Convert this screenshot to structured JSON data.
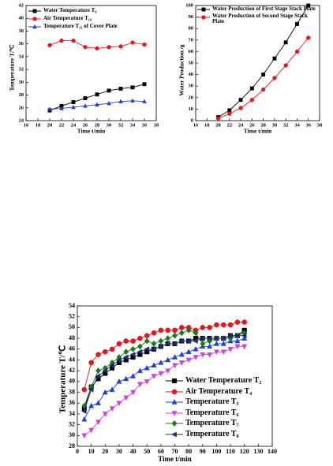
{
  "chart_data": [
    {
      "type": "line",
      "xlabel": "Time t/min",
      "ylabel": "Temperature T/℃",
      "xlim": [
        16,
        38
      ],
      "xticks": [
        16,
        18,
        20,
        22,
        24,
        26,
        28,
        30,
        32,
        34,
        36,
        38
      ],
      "ylim": [
        24,
        42
      ],
      "yticks": [
        24,
        26,
        28,
        30,
        32,
        34,
        36,
        38,
        40,
        42
      ],
      "legend": "upper left",
      "x": [
        20,
        22,
        24,
        26,
        28,
        30,
        32,
        34,
        36
      ],
      "series": [
        {
          "name": "Water Temperature T₀",
          "color": "#000000",
          "marker": "square",
          "values": [
            25.6,
            26.3,
            26.9,
            27.5,
            28.1,
            28.7,
            29.0,
            29.2,
            29.7
          ]
        },
        {
          "name": "Air Temperature T₁₀",
          "color": "#e8161b",
          "marker": "circle",
          "values": [
            35.8,
            36.5,
            36.5,
            35.5,
            35.3,
            35.5,
            35.6,
            36.2,
            35.9
          ]
        },
        {
          "name": "Temperature T₁₁ of Cover Plate",
          "color": "#1f3fd6",
          "marker": "triangle",
          "values": [
            25.8,
            25.9,
            26.1,
            26.3,
            26.5,
            26.7,
            27.0,
            27.1,
            27.0
          ]
        }
      ]
    },
    {
      "type": "line",
      "xlabel": "Time t/min",
      "ylabel": "Water Production /g",
      "xlim": [
        16,
        38
      ],
      "xticks": [
        16,
        18,
        20,
        22,
        24,
        26,
        28,
        30,
        32,
        34,
        36,
        38
      ],
      "ylim": [
        0,
        100
      ],
      "yticks": [
        0,
        10,
        20,
        30,
        40,
        50,
        60,
        70,
        80,
        90,
        100
      ],
      "legend": "upper left",
      "x": [
        20,
        22,
        24,
        26,
        28,
        30,
        32,
        34,
        36
      ],
      "series": [
        {
          "name": "Water Production of First Stage Stack Plate",
          "color": "#000000",
          "marker": "square",
          "values": [
            3,
            9,
            18,
            28,
            40,
            54,
            68,
            84,
            100
          ]
        },
        {
          "name": "Water Production of Second Stage Stack Plate",
          "color": "#e8161b",
          "marker": "circle",
          "values": [
            2,
            6,
            11,
            18,
            27,
            37,
            48,
            60,
            72
          ]
        }
      ]
    },
    {
      "type": "line",
      "xlabel": "Time t/min",
      "ylabel": "Temperature T/℃",
      "xlim": [
        0,
        140
      ],
      "xticks": [
        0,
        10,
        20,
        30,
        40,
        50,
        60,
        70,
        80,
        90,
        100,
        110,
        120,
        130,
        140
      ],
      "ylim": [
        28,
        54
      ],
      "yticks": [
        28,
        30,
        32,
        34,
        36,
        38,
        40,
        42,
        44,
        46,
        48,
        50,
        52,
        54
      ],
      "legend": "lower right",
      "x": [
        5,
        10,
        15,
        20,
        25,
        30,
        35,
        40,
        45,
        50,
        55,
        60,
        65,
        70,
        75,
        80,
        85,
        90,
        95,
        100,
        105,
        110,
        115,
        120
      ],
      "series": [
        {
          "name": "Water Temperature T₂",
          "color": "#000000",
          "marker": "square",
          "values": [
            35,
            39,
            40.5,
            41.5,
            42.5,
            43.5,
            44,
            44.5,
            45,
            45.5,
            46,
            46.5,
            47,
            47,
            47.5,
            47.5,
            48,
            48,
            48,
            48,
            48,
            48.5,
            48.5,
            49.5
          ]
        },
        {
          "name": "Air Temperature T₄",
          "color": "#e8161b",
          "marker": "circle",
          "values": [
            38.5,
            43.5,
            45,
            45.5,
            46,
            47,
            47.5,
            47.5,
            48,
            48.5,
            49,
            49.5,
            49.5,
            49.5,
            50,
            50,
            49.5,
            50,
            50,
            50.5,
            50.5,
            50.5,
            51,
            51
          ]
        },
        {
          "name": "Temperature T₅",
          "color": "#1f3fd6",
          "marker": "triangle",
          "values": [
            33,
            35.5,
            36,
            38,
            38.5,
            40,
            40.5,
            41,
            42,
            42.5,
            43,
            43.5,
            44,
            44.5,
            45,
            45.5,
            46,
            46.5,
            46.5,
            47,
            47,
            47.5,
            47.5,
            48
          ]
        },
        {
          "name": "Temperature T₆",
          "color": "#d43fd4",
          "marker": "triangle-down",
          "values": [
            30,
            31,
            32.5,
            34,
            35,
            36,
            37,
            38,
            39.5,
            40,
            41,
            41.5,
            42,
            43,
            43.5,
            44,
            44.5,
            45,
            45,
            45.5,
            45.5,
            46,
            46.5,
            46.5
          ]
        },
        {
          "name": "Temperature T₇",
          "color": "#1a7a1a",
          "marker": "diamond",
          "values": [
            35.5,
            39,
            42,
            42.5,
            43.5,
            44.5,
            45.5,
            46,
            46.5,
            47.5,
            47,
            47.5,
            48,
            48.5,
            49,
            49.5,
            49,
            47,
            47.5,
            48,
            48,
            48,
            48.5,
            49
          ]
        },
        {
          "name": "Temperature T₈",
          "color": "#1c2a7a",
          "marker": "triangle-left",
          "values": [
            34.5,
            38.5,
            41,
            42,
            43,
            44,
            44.5,
            45,
            45.5,
            46,
            46,
            46.5,
            47,
            47,
            47.5,
            47.5,
            47.5,
            48,
            48,
            48,
            48,
            48.5,
            48.5,
            48.5
          ]
        }
      ]
    }
  ]
}
